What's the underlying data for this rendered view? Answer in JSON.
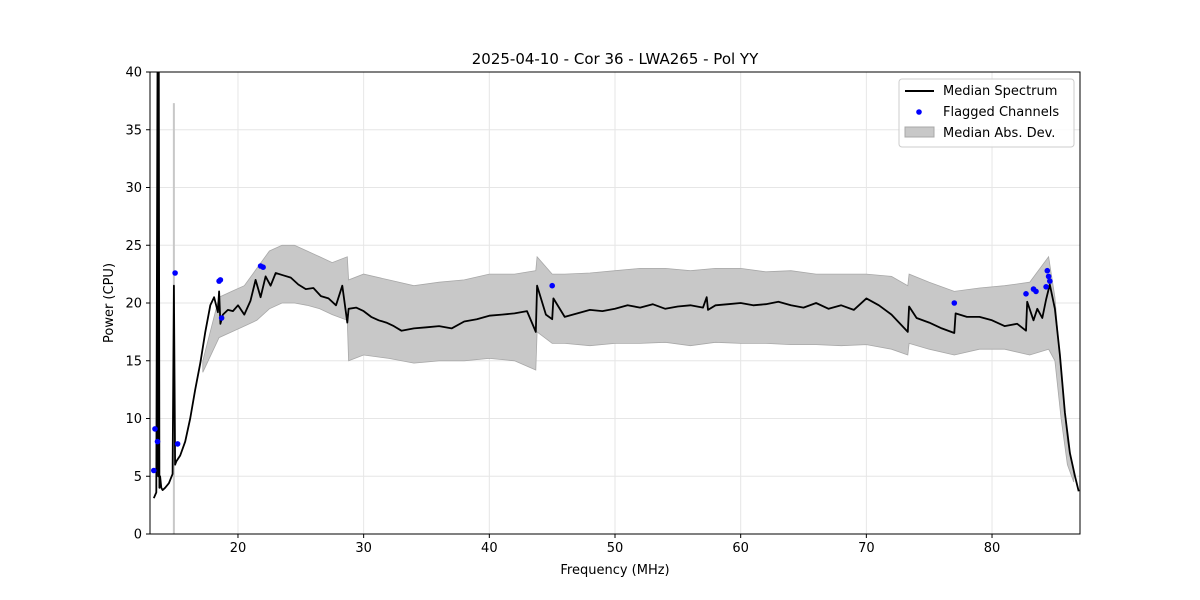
{
  "chart_data": {
    "type": "line",
    "title": "2025-04-10 - Cor 36 - LWA265 - Pol YY",
    "xlabel": "Frequency (MHz)",
    "ylabel": "Power (CPU)",
    "xlim": [
      13.0,
      87.0
    ],
    "ylim": [
      0,
      40
    ],
    "xticks": [
      20,
      30,
      40,
      50,
      60,
      70,
      80
    ],
    "yticks": [
      0,
      5,
      10,
      15,
      20,
      25,
      30,
      35,
      40
    ],
    "grid": true,
    "legend_position": "top-right",
    "series": [
      {
        "name": "Median Spectrum",
        "kind": "line",
        "color": "#000000",
        "x": [
          13.3,
          13.5,
          13.6,
          13.65,
          13.7,
          13.75,
          13.8,
          13.9,
          14.0,
          14.2,
          14.5,
          14.8,
          14.9,
          15.0,
          15.1,
          15.4,
          15.8,
          16.2,
          16.6,
          17.0,
          17.4,
          17.8,
          18.1,
          18.4,
          18.5,
          18.6,
          18.8,
          19.2,
          19.6,
          20.0,
          20.5,
          21.0,
          21.4,
          21.8,
          22.2,
          22.6,
          23.0,
          23.6,
          24.2,
          24.8,
          25.4,
          26.0,
          26.6,
          27.2,
          27.8,
          28.3,
          28.7,
          28.8,
          29.4,
          30.0,
          30.6,
          31.2,
          31.8,
          32.4,
          33.0,
          34.0,
          35.0,
          36.0,
          37.0,
          38.0,
          39.0,
          40.0,
          41.0,
          42.0,
          43.0,
          43.7,
          43.8,
          44.5,
          45.0,
          45.1,
          46.0,
          47.0,
          48.0,
          49.0,
          50.0,
          51.0,
          52.0,
          53.0,
          54.0,
          55.0,
          56.0,
          57.0,
          57.3,
          57.4,
          58.0,
          59.0,
          60.0,
          61.0,
          62.0,
          63.0,
          64.0,
          65.0,
          66.0,
          67.0,
          68.0,
          69.0,
          70.0,
          71.0,
          72.0,
          73.3,
          73.4,
          74.0,
          75.0,
          76.0,
          77.0,
          77.1,
          78.0,
          79.0,
          80.0,
          81.0,
          82.0,
          82.7,
          82.8,
          83.3,
          83.6,
          84.0,
          84.3,
          84.6,
          85.0,
          85.4,
          85.8,
          86.2,
          86.6,
          86.9
        ],
        "y": [
          3.1,
          3.6,
          40.0,
          5.0,
          40.0,
          4.0,
          5.0,
          4.0,
          3.8,
          4.0,
          4.4,
          5.2,
          21.5,
          6.0,
          6.3,
          6.8,
          8.0,
          10.0,
          12.5,
          14.8,
          17.5,
          19.8,
          20.5,
          19.2,
          21.0,
          18.2,
          19.0,
          19.4,
          19.3,
          19.8,
          19.0,
          20.2,
          22.0,
          20.5,
          22.3,
          21.5,
          22.6,
          22.4,
          22.2,
          21.6,
          21.2,
          21.3,
          20.6,
          20.4,
          19.8,
          21.5,
          18.3,
          19.5,
          19.6,
          19.3,
          18.8,
          18.5,
          18.3,
          18.0,
          17.6,
          17.8,
          17.9,
          18.0,
          17.8,
          18.4,
          18.6,
          18.9,
          19.0,
          19.1,
          19.3,
          17.5,
          21.5,
          19.0,
          18.6,
          20.4,
          18.8,
          19.1,
          19.4,
          19.3,
          19.5,
          19.8,
          19.6,
          19.9,
          19.5,
          19.7,
          19.8,
          19.6,
          20.5,
          19.4,
          19.8,
          19.9,
          20.0,
          19.8,
          19.9,
          20.1,
          19.8,
          19.6,
          20.0,
          19.5,
          19.8,
          19.4,
          20.4,
          19.8,
          19.0,
          17.5,
          19.7,
          18.7,
          18.3,
          17.8,
          17.4,
          19.1,
          18.8,
          18.8,
          18.5,
          18.0,
          18.2,
          17.6,
          20.1,
          18.5,
          19.5,
          18.7,
          20.3,
          21.6,
          19.5,
          15.5,
          10.5,
          7.0,
          5.0,
          3.7
        ]
      },
      {
        "name": "Flagged Channels",
        "kind": "scatter",
        "color": "#0000ff",
        "x": [
          13.3,
          13.4,
          13.6,
          15.0,
          15.2,
          18.5,
          18.6,
          18.7,
          21.8,
          22.0,
          45.0,
          77.0,
          82.7,
          83.3,
          83.5,
          84.3,
          84.4,
          84.5,
          84.6
        ],
        "y": [
          5.5,
          9.1,
          8.0,
          22.6,
          7.8,
          21.9,
          22.0,
          18.7,
          23.2,
          23.1,
          21.5,
          20.0,
          20.8,
          21.2,
          21.0,
          21.4,
          22.8,
          22.3,
          21.9
        ]
      },
      {
        "name": "Median Abs. Dev.",
        "kind": "band",
        "color": "#c8c8c8",
        "x": [
          17.2,
          18.5,
          19.5,
          20.5,
          21.5,
          22.5,
          23.5,
          24.5,
          25.5,
          26.5,
          27.5,
          28.7,
          28.8,
          30.0,
          32.0,
          34.0,
          36.0,
          38.0,
          40.0,
          42.0,
          43.7,
          43.8,
          45.0,
          46.0,
          48.0,
          50.0,
          52.0,
          54.0,
          56.0,
          58.0,
          60.0,
          62.0,
          64.0,
          66.0,
          68.0,
          70.0,
          72.0,
          73.3,
          73.4,
          75.0,
          77.0,
          79.0,
          81.0,
          83.0,
          84.5,
          85.0,
          85.5,
          86.0,
          86.5
        ],
        "lower": [
          14.0,
          17.0,
          17.5,
          18.0,
          18.5,
          19.5,
          20.0,
          20.0,
          19.8,
          19.5,
          19.0,
          18.5,
          15.0,
          15.5,
          15.2,
          14.8,
          15.0,
          15.0,
          15.2,
          15.0,
          14.2,
          17.5,
          16.5,
          16.5,
          16.3,
          16.5,
          16.5,
          16.6,
          16.3,
          16.6,
          16.5,
          16.5,
          16.4,
          16.4,
          16.3,
          16.4,
          16.0,
          15.5,
          16.5,
          16.0,
          15.5,
          16.0,
          16.0,
          15.5,
          16.0,
          15.0,
          10.0,
          6.0,
          4.5
        ],
        "upper": [
          15.0,
          20.5,
          21.0,
          21.5,
          23.0,
          24.5,
          25.0,
          25.0,
          24.5,
          24.0,
          23.5,
          24.0,
          22.0,
          22.5,
          22.0,
          21.5,
          21.8,
          22.0,
          22.5,
          22.5,
          22.8,
          24.0,
          22.5,
          22.5,
          22.6,
          22.8,
          23.0,
          23.0,
          22.8,
          23.0,
          23.0,
          22.7,
          22.8,
          22.5,
          22.5,
          22.5,
          22.3,
          21.5,
          22.5,
          21.8,
          21.0,
          21.3,
          21.5,
          21.8,
          24.0,
          20.5,
          14.0,
          8.0,
          5.5
        ]
      },
      {
        "name": "",
        "kind": "spike",
        "color": "#c8c8c8",
        "x": 14.9,
        "y": 37.3
      }
    ]
  }
}
